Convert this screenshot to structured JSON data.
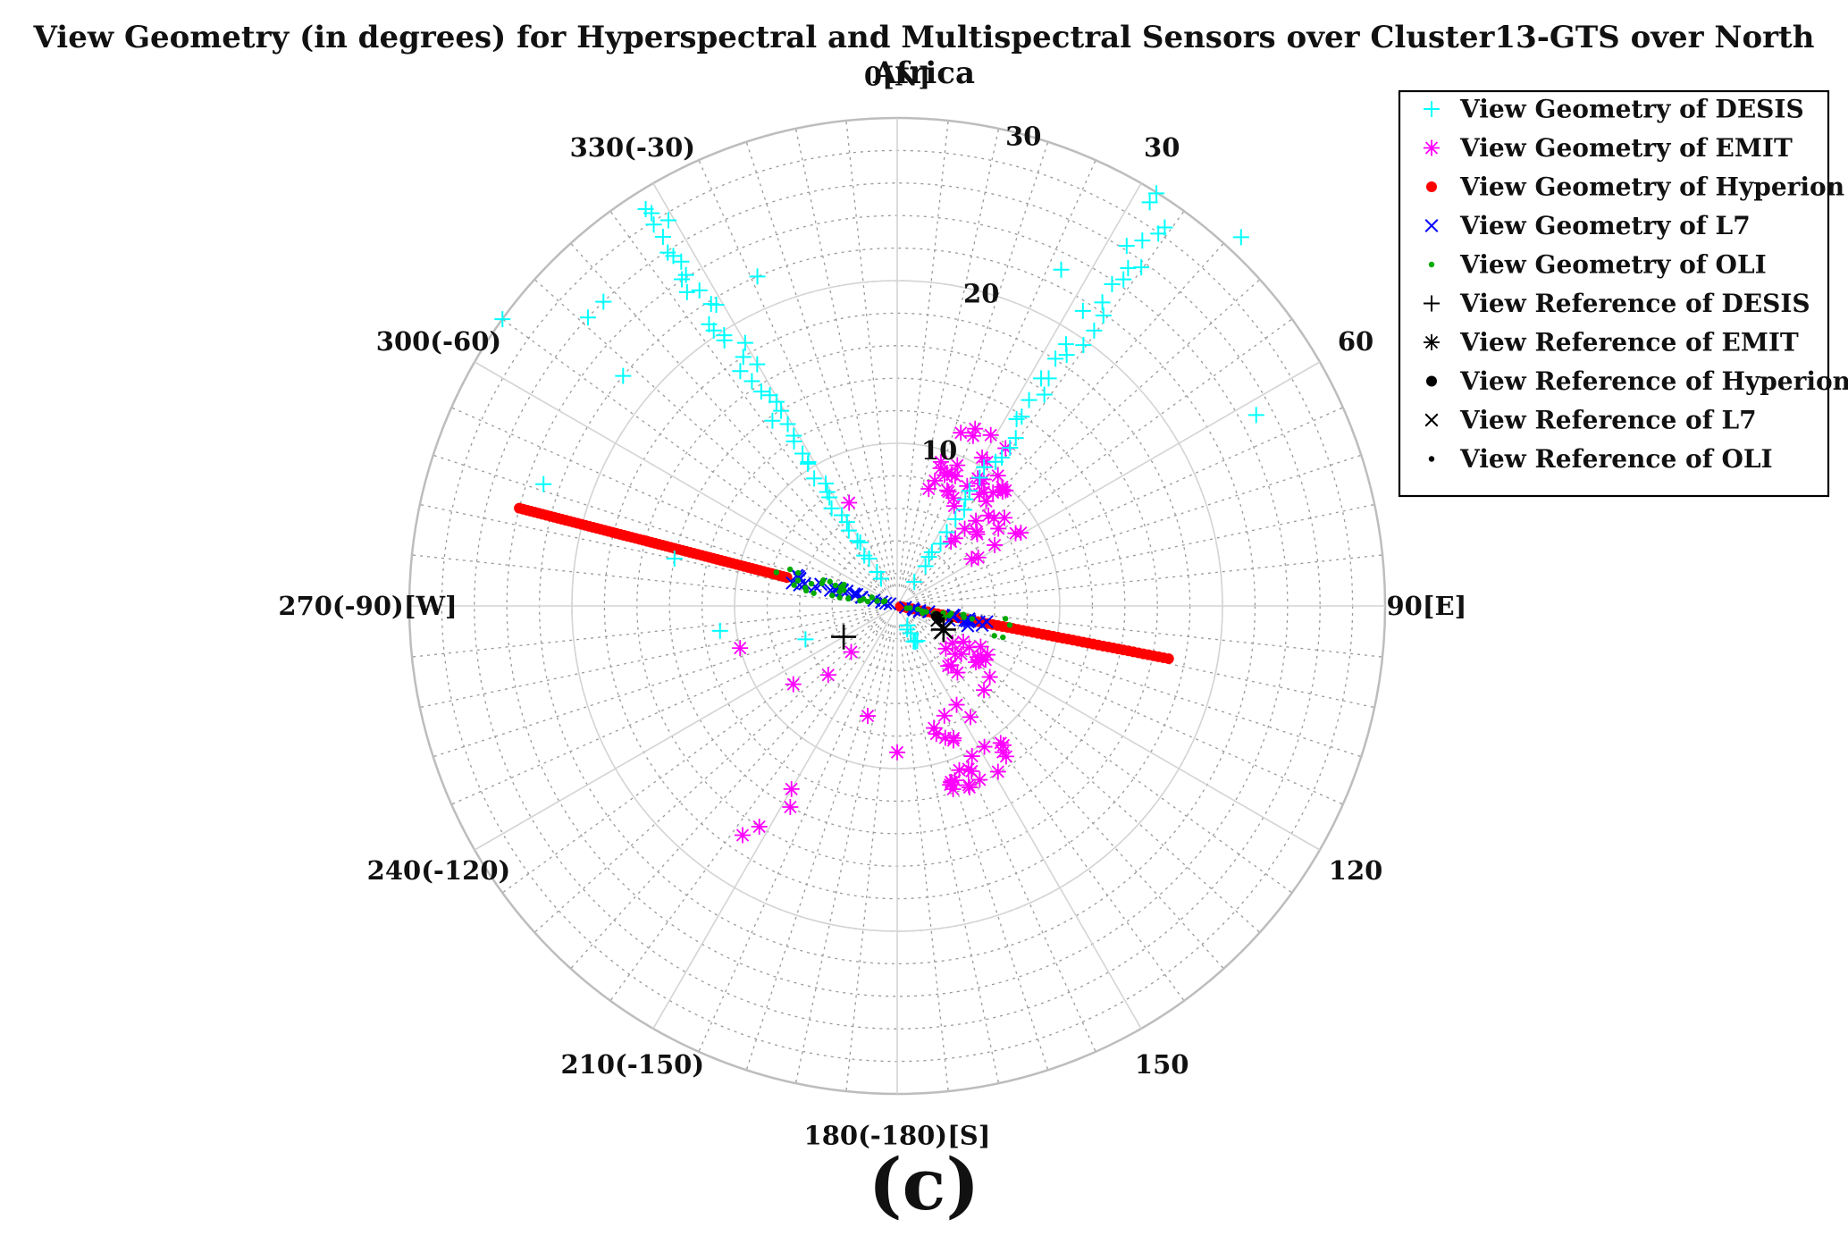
{
  "chart_data": {
    "type": "scatter",
    "subtype": "polar",
    "title": "View Geometry (in degrees) for Hyperspectral and Multispectral Sensors over Cluster13-GTS over North Africa",
    "panel_label": "(c)",
    "r_axis": {
      "min": 0,
      "max": 30,
      "ticks": [
        10,
        20,
        30
      ],
      "tick_labels": [
        "10",
        "20",
        "30"
      ]
    },
    "theta_axis": {
      "zero": "top",
      "direction": "clockwise",
      "ticks": [
        0,
        30,
        60,
        90,
        120,
        150,
        180,
        210,
        240,
        270,
        300,
        330
      ],
      "tick_labels": [
        "0[N]",
        "30",
        "60",
        "90[E]",
        "120",
        "150",
        "180(-180)[S]",
        "210(-150)",
        "240(-120)",
        "270(-90)[W]",
        "300(-60)",
        "330(-30)"
      ]
    },
    "grid": true,
    "legend_position": "top-right",
    "series": [
      {
        "name": "View Geometry of DESIS",
        "marker": "plus",
        "color": "#00ffff",
        "groups": [
          {
            "theta": [
              32,
              36
            ],
            "r": [
              2,
              30
            ],
            "count": 40,
            "jitter": 0.6
          },
          {
            "theta": [
              326,
              330
            ],
            "r": [
              2,
              29
            ],
            "count": 48,
            "jitter": 0.6
          },
          {
            "theta": [
              150,
              162
            ],
            "r": [
              1,
              3
            ],
            "count": 6,
            "jitter": 0.3
          }
        ],
        "points": [
          [
            306,
            30
          ],
          [
            313,
            26
          ],
          [
            337,
            22
          ],
          [
            26,
            23
          ],
          [
            43,
            31
          ],
          [
            62,
            25
          ],
          [
            289,
            23
          ],
          [
            282,
            14
          ],
          [
            262,
            11
          ],
          [
            250,
            6
          ],
          [
            310,
            22
          ],
          [
            316,
            26
          ]
        ]
      },
      {
        "name": "View Geometry of EMIT",
        "marker": "asterisk",
        "color": "#ff00ff",
        "groups": [
          {
            "theta": [
              15,
              38
            ],
            "r": [
              7,
              12
            ],
            "count": 26,
            "jitter": 0.6
          },
          {
            "theta": [
              35,
              60
            ],
            "r": [
              5,
              10
            ],
            "count": 22,
            "jitter": 0.6
          },
          {
            "theta": [
              140,
              165
            ],
            "r": [
              7,
              12
            ],
            "count": 26,
            "jitter": 0.6
          },
          {
            "theta": [
              115,
              140
            ],
            "r": [
              4,
              8
            ],
            "count": 18,
            "jitter": 0.6
          }
        ],
        "points": [
          [
            335,
            7
          ],
          [
            255,
            10
          ],
          [
            210,
            13
          ],
          [
            208,
            14
          ],
          [
            212,
            16
          ],
          [
            214,
            17
          ],
          [
            233,
            8
          ],
          [
            225,
            6
          ],
          [
            225,
            4
          ],
          [
            180,
            9
          ],
          [
            195,
            7
          ]
        ]
      },
      {
        "name": "View Geometry of Hyperion",
        "marker": "dot",
        "color": "#ff0000",
        "groups": [
          {
            "theta": [
              284.5,
              284.5
            ],
            "r": [
              7,
              24
            ],
            "count": 70,
            "jitter": 0
          },
          {
            "theta": [
              101,
              101
            ],
            "r": [
              0,
              17
            ],
            "count": 55,
            "jitter": 0
          }
        ],
        "points": []
      },
      {
        "name": "View Geometry of L7",
        "marker": "x",
        "color": "#0000ff",
        "groups": [
          {
            "theta": [
              282,
              287
            ],
            "r": [
              0.5,
              7
            ],
            "count": 24,
            "jitter": 0.15
          },
          {
            "theta": [
              98,
              106
            ],
            "r": [
              0.5,
              6
            ],
            "count": 18,
            "jitter": 0.15
          }
        ],
        "points": []
      },
      {
        "name": "View Geometry of OLI",
        "marker": "small-dot",
        "color": "#00aa00",
        "groups": [
          {
            "theta": [
              278,
              292
            ],
            "r": [
              0.5,
              8
            ],
            "count": 30,
            "jitter": 0.25
          },
          {
            "theta": [
              96,
              108
            ],
            "r": [
              0.5,
              7
            ],
            "count": 22,
            "jitter": 0.25
          }
        ],
        "points": []
      },
      {
        "name": "View Reference of DESIS",
        "marker": "plus",
        "color": "#000000",
        "size": "large",
        "points": [
          [
            240,
            3.8
          ]
        ]
      },
      {
        "name": "View Reference of EMIT",
        "marker": "asterisk",
        "color": "#000000",
        "size": "large",
        "points": [
          [
            117,
            3.2
          ]
        ]
      },
      {
        "name": "View Reference of Hyperion",
        "marker": "dot",
        "color": "#000000",
        "points": [
          [
            105,
            2.5
          ]
        ]
      },
      {
        "name": "View Reference of L7",
        "marker": "x",
        "color": "#000000",
        "points": [
          [
            110,
            2.6
          ]
        ]
      },
      {
        "name": "View Reference of OLI",
        "marker": "small-dot",
        "color": "#000000",
        "points": [
          [
            108,
            2.8
          ]
        ]
      }
    ]
  }
}
